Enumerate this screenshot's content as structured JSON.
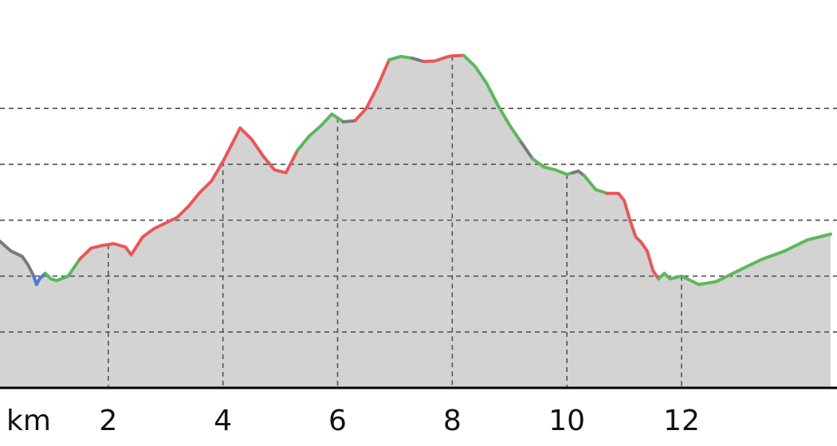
{
  "chart_data": {
    "type": "area",
    "title": "",
    "x_unit": "km",
    "xlim": [
      0.0,
      14.6
    ],
    "ylim": [
      0,
      6
    ],
    "x_ticks": [
      2,
      4,
      6,
      8,
      10,
      12
    ],
    "x_tick_labels": [
      "2",
      "4",
      "6",
      "8",
      "10",
      "12"
    ],
    "y_grid": [
      1,
      2,
      3,
      4,
      5
    ],
    "grid": true,
    "fill_color": "#d3d3d3",
    "grade_colors": {
      "steep": "#e8585a",
      "moderate": "#5cb85c",
      "flat": "#7a7a7a",
      "descent": "#4a7bd0"
    },
    "profile": [
      [
        0.0,
        2.72
      ],
      [
        0.3,
        2.45
      ],
      [
        0.5,
        2.35
      ],
      [
        0.6,
        2.2
      ],
      [
        0.7,
        2.0
      ],
      [
        0.75,
        1.85
      ],
      [
        0.8,
        1.95
      ],
      [
        0.9,
        2.05
      ],
      [
        1.0,
        1.95
      ],
      [
        1.1,
        1.92
      ],
      [
        1.3,
        2.0
      ],
      [
        1.5,
        2.3
      ],
      [
        1.7,
        2.5
      ],
      [
        1.9,
        2.55
      ],
      [
        2.1,
        2.58
      ],
      [
        2.3,
        2.52
      ],
      [
        2.4,
        2.38
      ],
      [
        2.6,
        2.7
      ],
      [
        2.8,
        2.85
      ],
      [
        3.0,
        2.95
      ],
      [
        3.2,
        3.05
      ],
      [
        3.4,
        3.25
      ],
      [
        3.6,
        3.5
      ],
      [
        3.8,
        3.7
      ],
      [
        4.0,
        4.05
      ],
      [
        4.2,
        4.45
      ],
      [
        4.3,
        4.65
      ],
      [
        4.5,
        4.45
      ],
      [
        4.7,
        4.15
      ],
      [
        4.9,
        3.9
      ],
      [
        5.1,
        3.85
      ],
      [
        5.3,
        4.25
      ],
      [
        5.5,
        4.5
      ],
      [
        5.7,
        4.68
      ],
      [
        5.9,
        4.9
      ],
      [
        6.1,
        4.76
      ],
      [
        6.3,
        4.78
      ],
      [
        6.5,
        5.0
      ],
      [
        6.7,
        5.4
      ],
      [
        6.9,
        5.87
      ],
      [
        7.1,
        5.93
      ],
      [
        7.3,
        5.9
      ],
      [
        7.5,
        5.84
      ],
      [
        7.7,
        5.85
      ],
      [
        7.9,
        5.92
      ],
      [
        8.0,
        5.94
      ],
      [
        8.2,
        5.95
      ],
      [
        8.4,
        5.75
      ],
      [
        8.6,
        5.45
      ],
      [
        8.8,
        5.05
      ],
      [
        9.0,
        4.7
      ],
      [
        9.2,
        4.4
      ],
      [
        9.4,
        4.1
      ],
      [
        9.6,
        3.95
      ],
      [
        9.8,
        3.9
      ],
      [
        10.0,
        3.82
      ],
      [
        10.2,
        3.88
      ],
      [
        10.3,
        3.8
      ],
      [
        10.5,
        3.55
      ],
      [
        10.7,
        3.48
      ],
      [
        10.9,
        3.48
      ],
      [
        11.0,
        3.35
      ],
      [
        11.1,
        3.0
      ],
      [
        11.2,
        2.7
      ],
      [
        11.3,
        2.6
      ],
      [
        11.4,
        2.45
      ],
      [
        11.5,
        2.1
      ],
      [
        11.6,
        1.95
      ],
      [
        11.7,
        2.05
      ],
      [
        11.8,
        1.95
      ],
      [
        12.0,
        2.0
      ],
      [
        12.3,
        1.85
      ],
      [
        12.6,
        1.9
      ],
      [
        13.0,
        2.1
      ],
      [
        13.4,
        2.3
      ],
      [
        13.8,
        2.45
      ],
      [
        14.2,
        2.65
      ],
      [
        14.6,
        2.75
      ]
    ],
    "segments": [
      {
        "grade": "flat",
        "from": 0.0,
        "to": 0.7
      },
      {
        "grade": "descent",
        "from": 0.7,
        "to": 0.9
      },
      {
        "grade": "moderate",
        "from": 0.9,
        "to": 1.5
      },
      {
        "grade": "steep",
        "from": 1.5,
        "to": 5.3
      },
      {
        "grade": "moderate",
        "from": 5.3,
        "to": 6.1
      },
      {
        "grade": "flat",
        "from": 6.1,
        "to": 6.3
      },
      {
        "grade": "steep",
        "from": 6.3,
        "to": 6.9
      },
      {
        "grade": "moderate",
        "from": 6.9,
        "to": 7.3
      },
      {
        "grade": "flat",
        "from": 7.3,
        "to": 7.5
      },
      {
        "grade": "steep",
        "from": 7.5,
        "to": 8.2
      },
      {
        "grade": "moderate",
        "from": 8.2,
        "to": 9.2
      },
      {
        "grade": "flat",
        "from": 9.2,
        "to": 9.4
      },
      {
        "grade": "moderate",
        "from": 9.4,
        "to": 10.1
      },
      {
        "grade": "flat",
        "from": 10.1,
        "to": 10.3
      },
      {
        "grade": "moderate",
        "from": 10.3,
        "to": 10.7
      },
      {
        "grade": "steep",
        "from": 10.7,
        "to": 11.6
      },
      {
        "grade": "moderate",
        "from": 11.6,
        "to": 14.6
      }
    ]
  }
}
